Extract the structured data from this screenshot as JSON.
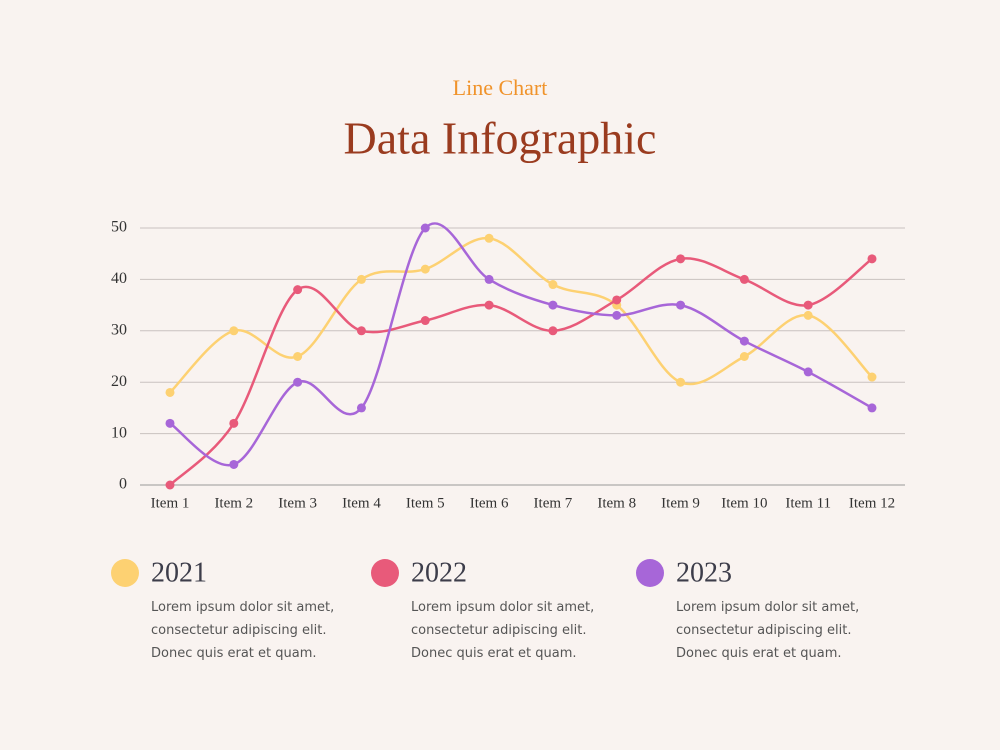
{
  "chart_data": {
    "type": "line",
    "subtitle": "Line Chart",
    "title": "Data Infographic",
    "categories": [
      "Item 1",
      "Item 2",
      "Item 3",
      "Item 4",
      "Item 5",
      "Item 6",
      "Item 7",
      "Item 8",
      "Item 9",
      "Item 10",
      "Item 11",
      "Item 12"
    ],
    "series": [
      {
        "name": "2021",
        "color": "#fdd172",
        "values": [
          18,
          30,
          25,
          40,
          42,
          48,
          39,
          35,
          20,
          25,
          33,
          21
        ],
        "description": "Lorem ipsum dolor sit amet, consectetur adipiscing elit. Donec quis erat et quam."
      },
      {
        "name": "2022",
        "color": "#e85a7a",
        "values": [
          0,
          12,
          38,
          30,
          32,
          35,
          30,
          36,
          44,
          40,
          35,
          44
        ],
        "description": "Lorem ipsum dolor sit amet, consectetur adipiscing elit. Donec quis erat et quam."
      },
      {
        "name": "2023",
        "color": "#a766d8",
        "values": [
          12,
          4,
          20,
          15,
          50,
          40,
          35,
          33,
          35,
          28,
          22,
          15
        ],
        "description": "Lorem ipsum dolor sit amet, consectetur adipiscing elit. Donec quis erat et quam."
      }
    ],
    "ylim": [
      0,
      50
    ],
    "yticks": [
      0,
      10,
      20,
      30,
      40,
      50
    ],
    "grid": true,
    "smooth": true
  }
}
